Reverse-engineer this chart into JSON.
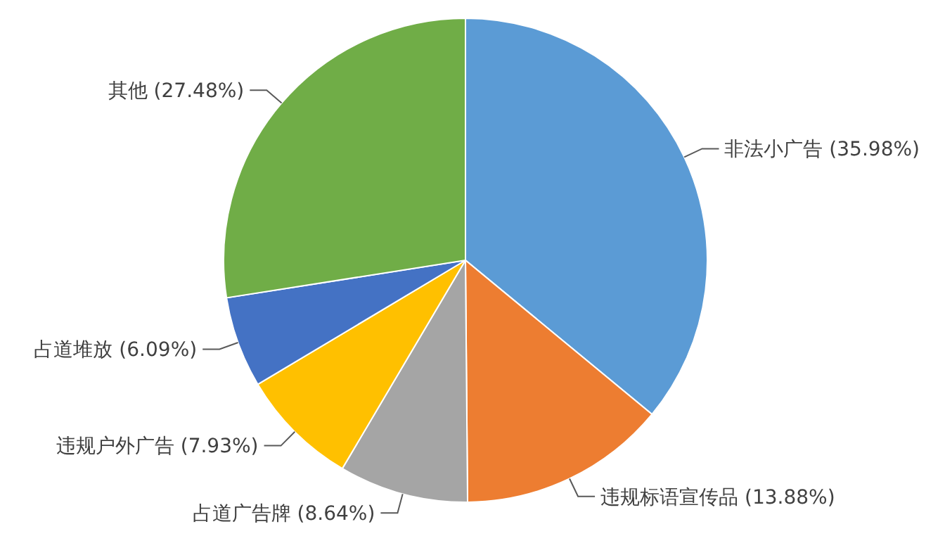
{
  "chart_data": {
    "type": "pie",
    "categories": [
      "非法小广告",
      "违规标语宣传品",
      "占道广告牌",
      "违规户外广告",
      "占道堆放",
      "其他"
    ],
    "values": [
      35.98,
      13.88,
      8.64,
      7.93,
      6.09,
      27.48
    ],
    "value_labels": [
      "(35.98%)",
      "(13.88%)",
      "(8.64%)",
      "(7.93%)",
      "(6.09%)",
      "(27.48%)"
    ],
    "colors": [
      "#5b9bd5",
      "#ed7d31",
      "#a5a5a5",
      "#ffc000",
      "#4472c4",
      "#70ad47"
    ],
    "legend": false
  }
}
